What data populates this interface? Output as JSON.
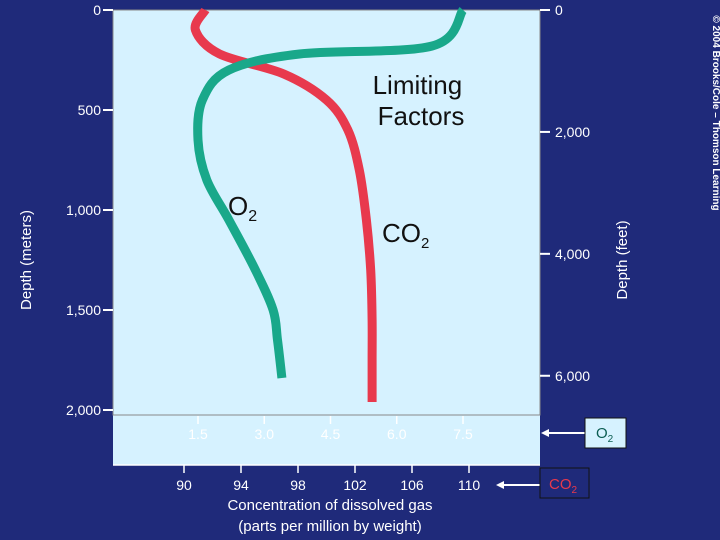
{
  "chart_data": {
    "type": "line",
    "title": "Limiting Factors",
    "left_axis": {
      "label": "Depth (meters)",
      "ticks": [
        0,
        500,
        1000,
        1500,
        2000
      ],
      "tick_labels": [
        "0",
        "500",
        "1,000",
        "1,500",
        "2,000"
      ],
      "range": [
        0,
        2000
      ]
    },
    "right_axis": {
      "label": "Depth (feet)",
      "ticks": [
        0,
        2000,
        4000,
        6000
      ],
      "tick_labels": [
        "0",
        "2,000",
        "4,000",
        "6,000"
      ]
    },
    "x_axes": [
      {
        "series": "O2",
        "ticks": [
          1.5,
          3.0,
          4.5,
          6.0,
          7.5
        ],
        "tick_labels": [
          "1.5",
          "3.0",
          "4.5",
          "6.0",
          "7.5"
        ],
        "legend_label": "O",
        "legend_sub": "2"
      },
      {
        "series": "CO2",
        "ticks": [
          90,
          94,
          98,
          102,
          106,
          110
        ],
        "tick_labels": [
          "90",
          "94",
          "98",
          "102",
          "106",
          "110"
        ],
        "legend_label": "CO",
        "legend_sub": "2"
      }
    ],
    "xlabel": "Concentration of dissolved gas",
    "xlabel_2": "(parts per million by weight)",
    "series": [
      {
        "name": "O2",
        "label_main": "O",
        "label_sub": "2",
        "color": "#19a88a",
        "points": [
          [
            7.5,
            0
          ],
          [
            6.8,
            180
          ],
          [
            3.8,
            220
          ],
          [
            2.2,
            300
          ],
          [
            1.6,
            450
          ],
          [
            1.5,
            650
          ],
          [
            1.7,
            850
          ],
          [
            2.2,
            1050
          ],
          [
            2.8,
            1300
          ],
          [
            3.2,
            1500
          ],
          [
            3.3,
            1650
          ],
          [
            3.4,
            1840
          ]
        ]
      },
      {
        "name": "CO2",
        "label_main": "CO",
        "label_sub": "2",
        "color": "#e8394d",
        "points": [
          [
            91.5,
            0
          ],
          [
            90.8,
            100
          ],
          [
            92.5,
            220
          ],
          [
            97.0,
            320
          ],
          [
            100.0,
            450
          ],
          [
            101.5,
            600
          ],
          [
            102.3,
            800
          ],
          [
            102.8,
            1050
          ],
          [
            103.1,
            1300
          ],
          [
            103.2,
            1550
          ],
          [
            103.2,
            1750
          ],
          [
            103.2,
            1960
          ]
        ]
      }
    ],
    "colors": {
      "background": "#1f2a7a",
      "plot": "#d6f2ff"
    }
  },
  "credit": "© 2004 Brooks/Cole – Thomson Learning"
}
